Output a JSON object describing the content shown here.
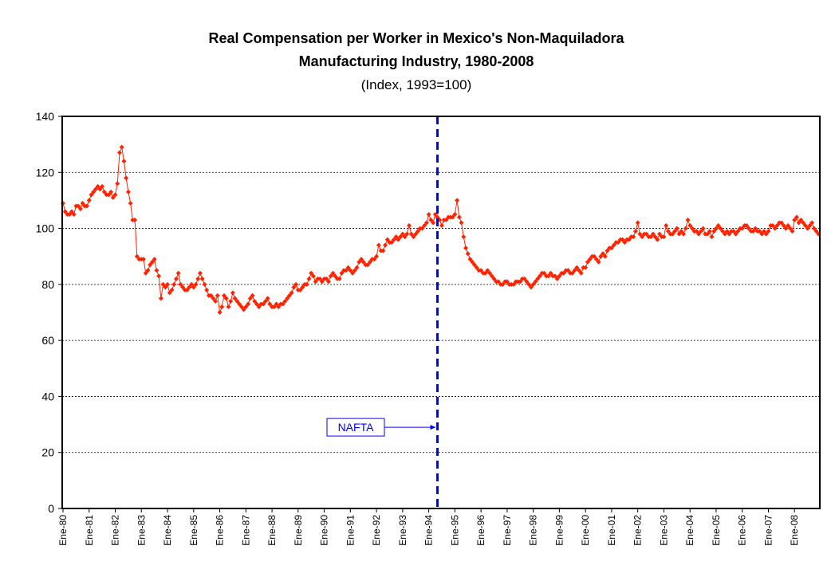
{
  "chart_data": {
    "type": "line",
    "title": "Real Compensation per Worker in Mexico's Non-Maquiladora",
    "title_line2": "Manufacturing Industry, 1980-2008",
    "subtitle": "(Index, 1993=100)",
    "categories": [
      "Ene-80",
      null,
      null,
      null,
      null,
      null,
      null,
      null,
      null,
      null,
      null,
      null,
      "Ene-81",
      null,
      null,
      null,
      null,
      null,
      null,
      null,
      null,
      null,
      null,
      null,
      "Ene-82",
      null,
      null,
      null,
      null,
      null,
      null,
      null,
      null,
      null,
      null,
      null,
      "Ene-83",
      null,
      null,
      null,
      null,
      null,
      null,
      null,
      null,
      null,
      null,
      null,
      "Ene-84",
      null,
      null,
      null,
      null,
      null,
      null,
      null,
      null,
      null,
      null,
      null,
      "Ene-85",
      null,
      null,
      null,
      null,
      null,
      null,
      null,
      null,
      null,
      null,
      null,
      "Ene-86",
      null,
      null,
      null,
      null,
      null,
      null,
      null,
      null,
      null,
      null,
      null,
      "Ene-87",
      null,
      null,
      null,
      null,
      null,
      null,
      null,
      null,
      null,
      null,
      null,
      "Ene-88",
      null,
      null,
      null,
      null,
      null,
      null,
      null,
      null,
      null,
      null,
      null,
      "Ene-89",
      null,
      null,
      null,
      null,
      null,
      null,
      null,
      null,
      null,
      null,
      null,
      "Ene-90",
      null,
      null,
      null,
      null,
      null,
      null,
      null,
      null,
      null,
      null,
      null,
      "Ene-91",
      null,
      null,
      null,
      null,
      null,
      null,
      null,
      null,
      null,
      null,
      null,
      "Ene-92",
      null,
      null,
      null,
      null,
      null,
      null,
      null,
      null,
      null,
      null,
      null,
      "Ene-93",
      null,
      null,
      null,
      null,
      null,
      null,
      null,
      null,
      null,
      null,
      null,
      "Ene-94",
      null,
      null,
      null,
      null,
      null,
      null,
      null,
      null,
      null,
      null,
      null,
      "Ene-95",
      null,
      null,
      null,
      null,
      null,
      null,
      null,
      null,
      null,
      null,
      null,
      "Ene-96",
      null,
      null,
      null,
      null,
      null,
      null,
      null,
      null,
      null,
      null,
      null,
      "Ene-97",
      null,
      null,
      null,
      null,
      null,
      null,
      null,
      null,
      null,
      null,
      null,
      "Ene-98",
      null,
      null,
      null,
      null,
      null,
      null,
      null,
      null,
      null,
      null,
      null,
      "Ene-99",
      null,
      null,
      null,
      null,
      null,
      null,
      null,
      null,
      null,
      null,
      null,
      "Ene-00",
      null,
      null,
      null,
      null,
      null,
      null,
      null,
      null,
      null,
      null,
      null,
      "Ene-01",
      null,
      null,
      null,
      null,
      null,
      null,
      null,
      null,
      null,
      null,
      null,
      "Ene-02",
      null,
      null,
      null,
      null,
      null,
      null,
      null,
      null,
      null,
      null,
      null,
      "Ene-03",
      null,
      null,
      null,
      null,
      null,
      null,
      null,
      null,
      null,
      null,
      null,
      "Ene-04",
      null,
      null,
      null,
      null,
      null,
      null,
      null,
      null,
      null,
      null,
      null,
      "Ene-05",
      null,
      null,
      null,
      null,
      null,
      null,
      null,
      null,
      null,
      null,
      null,
      "Ene-06",
      null,
      null,
      null,
      null,
      null,
      null,
      null,
      null,
      null,
      null,
      null,
      "Ene-07",
      null,
      null,
      null,
      null,
      null,
      null,
      null,
      null,
      null,
      null,
      null,
      "Ene-08",
      null,
      null,
      null,
      null,
      null,
      null,
      null,
      null,
      null,
      null,
      null
    ],
    "series": [
      {
        "name": "Real Compensation per Worker",
        "color": "#ff2200",
        "values": [
          109,
          106,
          105,
          105,
          106,
          105,
          108,
          108,
          107,
          109,
          108,
          108,
          110,
          112,
          113,
          114,
          115,
          114,
          115,
          113,
          112,
          112,
          113,
          111,
          112,
          116,
          127,
          129,
          124,
          118,
          113,
          109,
          103,
          103,
          90,
          89,
          89,
          89,
          84,
          85,
          87,
          88,
          89,
          85,
          83,
          75,
          80,
          79,
          80,
          77,
          78,
          80,
          82,
          84,
          80,
          79,
          78,
          78,
          79,
          80,
          79,
          80,
          82,
          84,
          82,
          80,
          78,
          76,
          76,
          75,
          74,
          76,
          70,
          72,
          76,
          75,
          72,
          74,
          77,
          75,
          74,
          73,
          72,
          71,
          72,
          73,
          75,
          76,
          74,
          73,
          72,
          73,
          73,
          74,
          75,
          73,
          72,
          72,
          73,
          72,
          73,
          73,
          74,
          75,
          76,
          77,
          79,
          80,
          78,
          78,
          79,
          80,
          80,
          82,
          84,
          83,
          81,
          82,
          82,
          81,
          82,
          82,
          81,
          83,
          84,
          83,
          82,
          82,
          84,
          85,
          85,
          86,
          85,
          84,
          85,
          86,
          88,
          89,
          88,
          87,
          87,
          88,
          89,
          89,
          90,
          94,
          92,
          92,
          94,
          96,
          95,
          95,
          96,
          97,
          96,
          97,
          98,
          97,
          98,
          101,
          98,
          97,
          98,
          99,
          100,
          100,
          101,
          102,
          105,
          103,
          102,
          105,
          104,
          103,
          101,
          103,
          103,
          104,
          104,
          104,
          105,
          110,
          104,
          102,
          97,
          93,
          91,
          89,
          88,
          87,
          86,
          85,
          85,
          84,
          84,
          85,
          84,
          83,
          82,
          81,
          81,
          80,
          80,
          81,
          81,
          80,
          80,
          80,
          81,
          81,
          81,
          82,
          82,
          81,
          80,
          79,
          80,
          81,
          82,
          83,
          84,
          84,
          83,
          83,
          84,
          83,
          83,
          82,
          83,
          84,
          84,
          85,
          85,
          84,
          84,
          85,
          86,
          85,
          84,
          86,
          86,
          88,
          89,
          90,
          90,
          89,
          88,
          90,
          91,
          90,
          92,
          93,
          93,
          94,
          95,
          95,
          96,
          96,
          95,
          96,
          96,
          97,
          97,
          99,
          102,
          98,
          97,
          98,
          98,
          97,
          97,
          98,
          97,
          96,
          98,
          97,
          97,
          101,
          99,
          98,
          98,
          99,
          100,
          98,
          99,
          98,
          100,
          103,
          101,
          100,
          99,
          99,
          98,
          99,
          100,
          98,
          98,
          99,
          97,
          99,
          100,
          101,
          100,
          99,
          98,
          99,
          98,
          99,
          99,
          98,
          99,
          100,
          100,
          101,
          101,
          100,
          99,
          99,
          100,
          99,
          99,
          98,
          99,
          98,
          99,
          101,
          101,
          100,
          101,
          102,
          102,
          101,
          100,
          101,
          100,
          99,
          103,
          104,
          102,
          103,
          102,
          101,
          100,
          101,
          102,
          100,
          99,
          98
        ]
      }
    ],
    "ylim": [
      0,
      140
    ],
    "yticks": [
      0,
      20,
      40,
      60,
      80,
      100,
      120,
      140
    ],
    "grid": true,
    "annotation": {
      "text": "NAFTA",
      "x_index": 172,
      "y": 29,
      "color": "#0000ff"
    }
  }
}
